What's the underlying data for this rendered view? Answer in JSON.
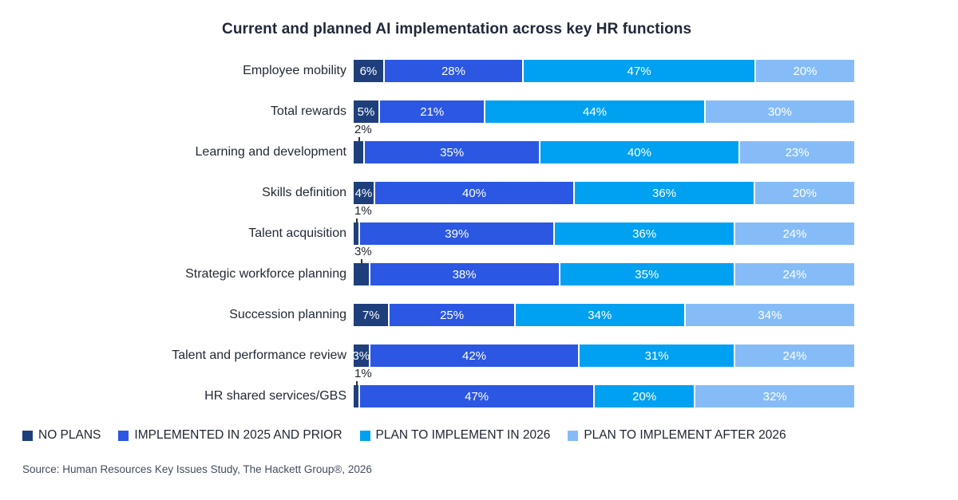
{
  "source": "Source: Human Resources Key Issues Study, The Hackett Group®, 2026",
  "chart_data": {
    "type": "bar",
    "stacked": true,
    "orientation": "horizontal",
    "title": "Current and planned AI implementation across key HR functions",
    "unit": "%",
    "xlim": [
      0,
      100
    ],
    "grid": false,
    "legend_position": "bottom",
    "series": [
      {
        "name": "NO PLANS",
        "color": "#1e3f7b"
      },
      {
        "name": "IMPLEMENTED IN 2025 AND PRIOR",
        "color": "#2b57e3"
      },
      {
        "name": "PLAN TO IMPLEMENT IN 2026",
        "color": "#00a1f1"
      },
      {
        "name": "PLAN TO IMPLEMENT AFTER 2026",
        "color": "#85bcf7"
      }
    ],
    "rows": [
      {
        "category": "Employee mobility",
        "values": [
          6,
          28,
          47,
          20
        ],
        "first_label_outside": false
      },
      {
        "category": "Total rewards",
        "values": [
          5,
          21,
          44,
          30
        ],
        "first_label_outside": false
      },
      {
        "category": "Learning and development",
        "values": [
          2,
          35,
          40,
          23
        ],
        "first_label_outside": true
      },
      {
        "category": "Skills definition",
        "values": [
          4,
          40,
          36,
          20
        ],
        "first_label_outside": false
      },
      {
        "category": "Talent acquisition",
        "values": [
          1,
          39,
          36,
          24
        ],
        "first_label_outside": true
      },
      {
        "category": "Strategic workforce planning",
        "values": [
          3,
          38,
          35,
          24
        ],
        "first_label_outside": true
      },
      {
        "category": "Succession planning",
        "values": [
          7,
          25,
          34,
          34
        ],
        "first_label_outside": false
      },
      {
        "category": "Talent and performance review",
        "values": [
          3,
          42,
          31,
          24
        ],
        "first_label_outside": false
      },
      {
        "category": "HR shared services/GBS",
        "values": [
          1,
          47,
          20,
          32
        ],
        "first_label_outside": true
      }
    ]
  }
}
